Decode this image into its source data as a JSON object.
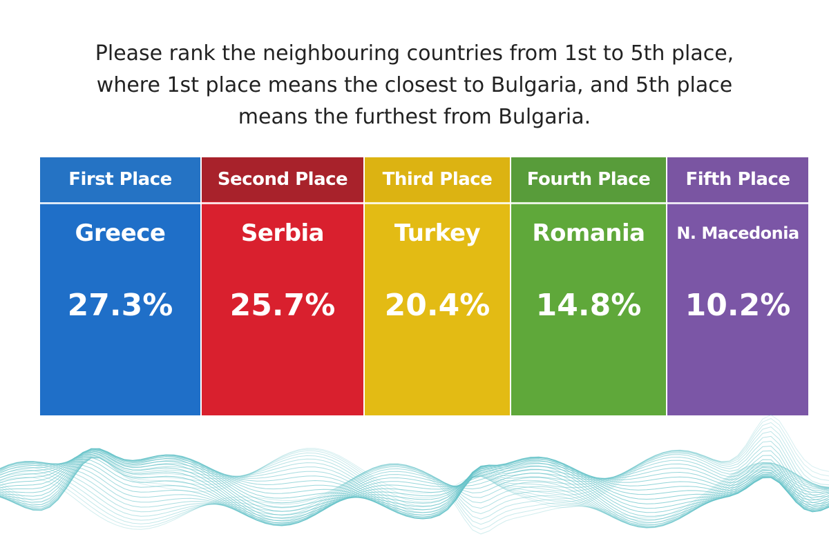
{
  "question": {
    "lines": [
      "Please rank the neighbouring countries from 1st to 5th place,",
      "where 1st place means the closest to Bulgaria, and 5th place",
      "means the furthest from Bulgaria."
    ]
  },
  "chart_data": {
    "type": "table",
    "categories": [
      "First Place",
      "Second Place",
      "Third Place",
      "Fourth Place",
      "Fifth Place"
    ],
    "countries": [
      "Greece",
      "Serbia",
      "Turkey",
      "Romania",
      "N. Macedonia"
    ],
    "values": [
      27.3,
      25.7,
      20.4,
      14.8,
      10.2
    ],
    "value_labels": [
      "27.3%",
      "25.7%",
      "20.4%",
      "14.8%",
      "10.2%"
    ],
    "colors": [
      "#1f6fc8",
      "#d9202e",
      "#e3bb14",
      "#5fa83a",
      "#7b56a6"
    ],
    "header_colors": [
      "#2573c4",
      "#a8222b",
      "#dcb312",
      "#589c3a",
      "#7a55a2"
    ]
  },
  "decoration": {
    "wave_color": "#5fc0c6"
  }
}
